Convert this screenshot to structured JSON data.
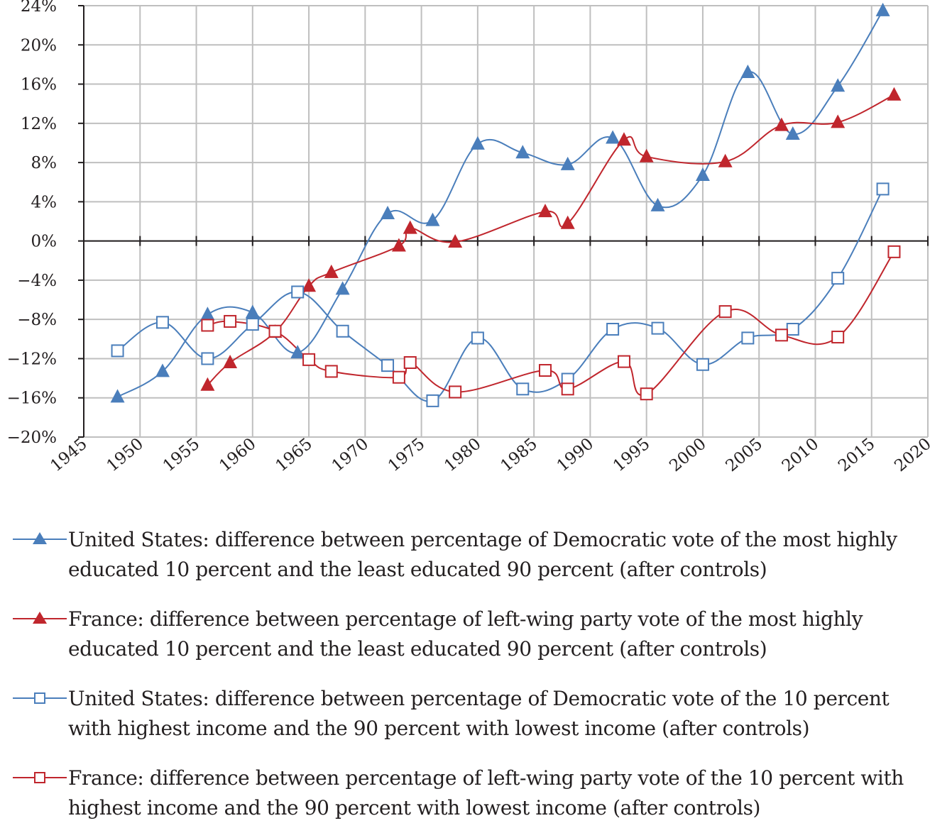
{
  "chart_data": {
    "type": "line",
    "title": "",
    "xlabel": "",
    "ylabel": "",
    "xlim": [
      1945,
      2020
    ],
    "ylim": [
      -20,
      24
    ],
    "x_ticks": [
      1945,
      1950,
      1955,
      1960,
      1965,
      1970,
      1975,
      1980,
      1985,
      1990,
      1995,
      2000,
      2005,
      2010,
      2015,
      2020
    ],
    "y_ticks": [
      -20,
      -16,
      -12,
      -8,
      -4,
      0,
      4,
      8,
      12,
      16,
      20,
      24
    ],
    "y_unit": "%",
    "grid": true,
    "legend_position": "bottom",
    "series": [
      {
        "name": "United States: difference between percentage of Democratic vote of the most highly educated 10 percent and the least educated 90 percent (after controls)",
        "color": "#4a7ebb",
        "marker": "filled-triangle",
        "x": [
          1948,
          1952,
          1956,
          1960,
          1964,
          1968,
          1972,
          1976,
          1980,
          1984,
          1988,
          1992,
          1996,
          2000,
          2004,
          2008,
          2012,
          2016
        ],
        "values": [
          -15.9,
          -13.3,
          -7.5,
          -7.3,
          -11.4,
          -4.9,
          2.8,
          2.1,
          9.9,
          9.0,
          7.8,
          10.5,
          3.6,
          6.7,
          17.2,
          10.9,
          15.8,
          23.5
        ]
      },
      {
        "name": "France: difference between percentage of left-wing party vote of the most highly educated 10 percent and the least educated 90 percent (after controls)",
        "color": "#c0262d",
        "marker": "filled-triangle",
        "x": [
          1956,
          1958,
          1962,
          1965,
          1967,
          1973,
          1974,
          1978,
          1986,
          1988,
          1993,
          1995,
          2002,
          2007,
          2012,
          2017
        ],
        "values": [
          -14.7,
          -12.4,
          -9.3,
          -4.6,
          -3.2,
          -0.5,
          1.3,
          -0.1,
          3.0,
          1.8,
          10.3,
          8.6,
          8.1,
          11.8,
          12.1,
          14.9
        ]
      },
      {
        "name": "United States: difference between percentage of Democratic vote of the 10 percent with highest income and the 90 percent with lowest income (after controls)",
        "color": "#4a7ebb",
        "marker": "hollow-square",
        "x": [
          1948,
          1952,
          1956,
          1960,
          1964,
          1968,
          1972,
          1976,
          1980,
          1984,
          1988,
          1992,
          1996,
          2000,
          2004,
          2008,
          2012,
          2016
        ],
        "values": [
          -11.2,
          -8.3,
          -12.0,
          -8.5,
          -5.2,
          -9.2,
          -12.7,
          -16.3,
          -9.9,
          -15.1,
          -14.1,
          -9.0,
          -8.9,
          -12.6,
          -9.9,
          -9.0,
          -3.8,
          5.3
        ]
      },
      {
        "name": "France: difference between percentage of left-wing party vote of the 10 percent with highest income and the 90 percent with lowest income (after controls)",
        "color": "#c0262d",
        "marker": "hollow-square",
        "x": [
          1956,
          1958,
          1962,
          1965,
          1967,
          1973,
          1974,
          1978,
          1986,
          1988,
          1993,
          1995,
          2002,
          2007,
          2012,
          2017
        ],
        "values": [
          -8.6,
          -8.2,
          -9.2,
          -12.1,
          -13.3,
          -13.9,
          -12.4,
          -15.4,
          -13.2,
          -15.1,
          -12.3,
          -15.6,
          -7.2,
          -9.6,
          -9.8,
          -1.1
        ]
      }
    ]
  }
}
